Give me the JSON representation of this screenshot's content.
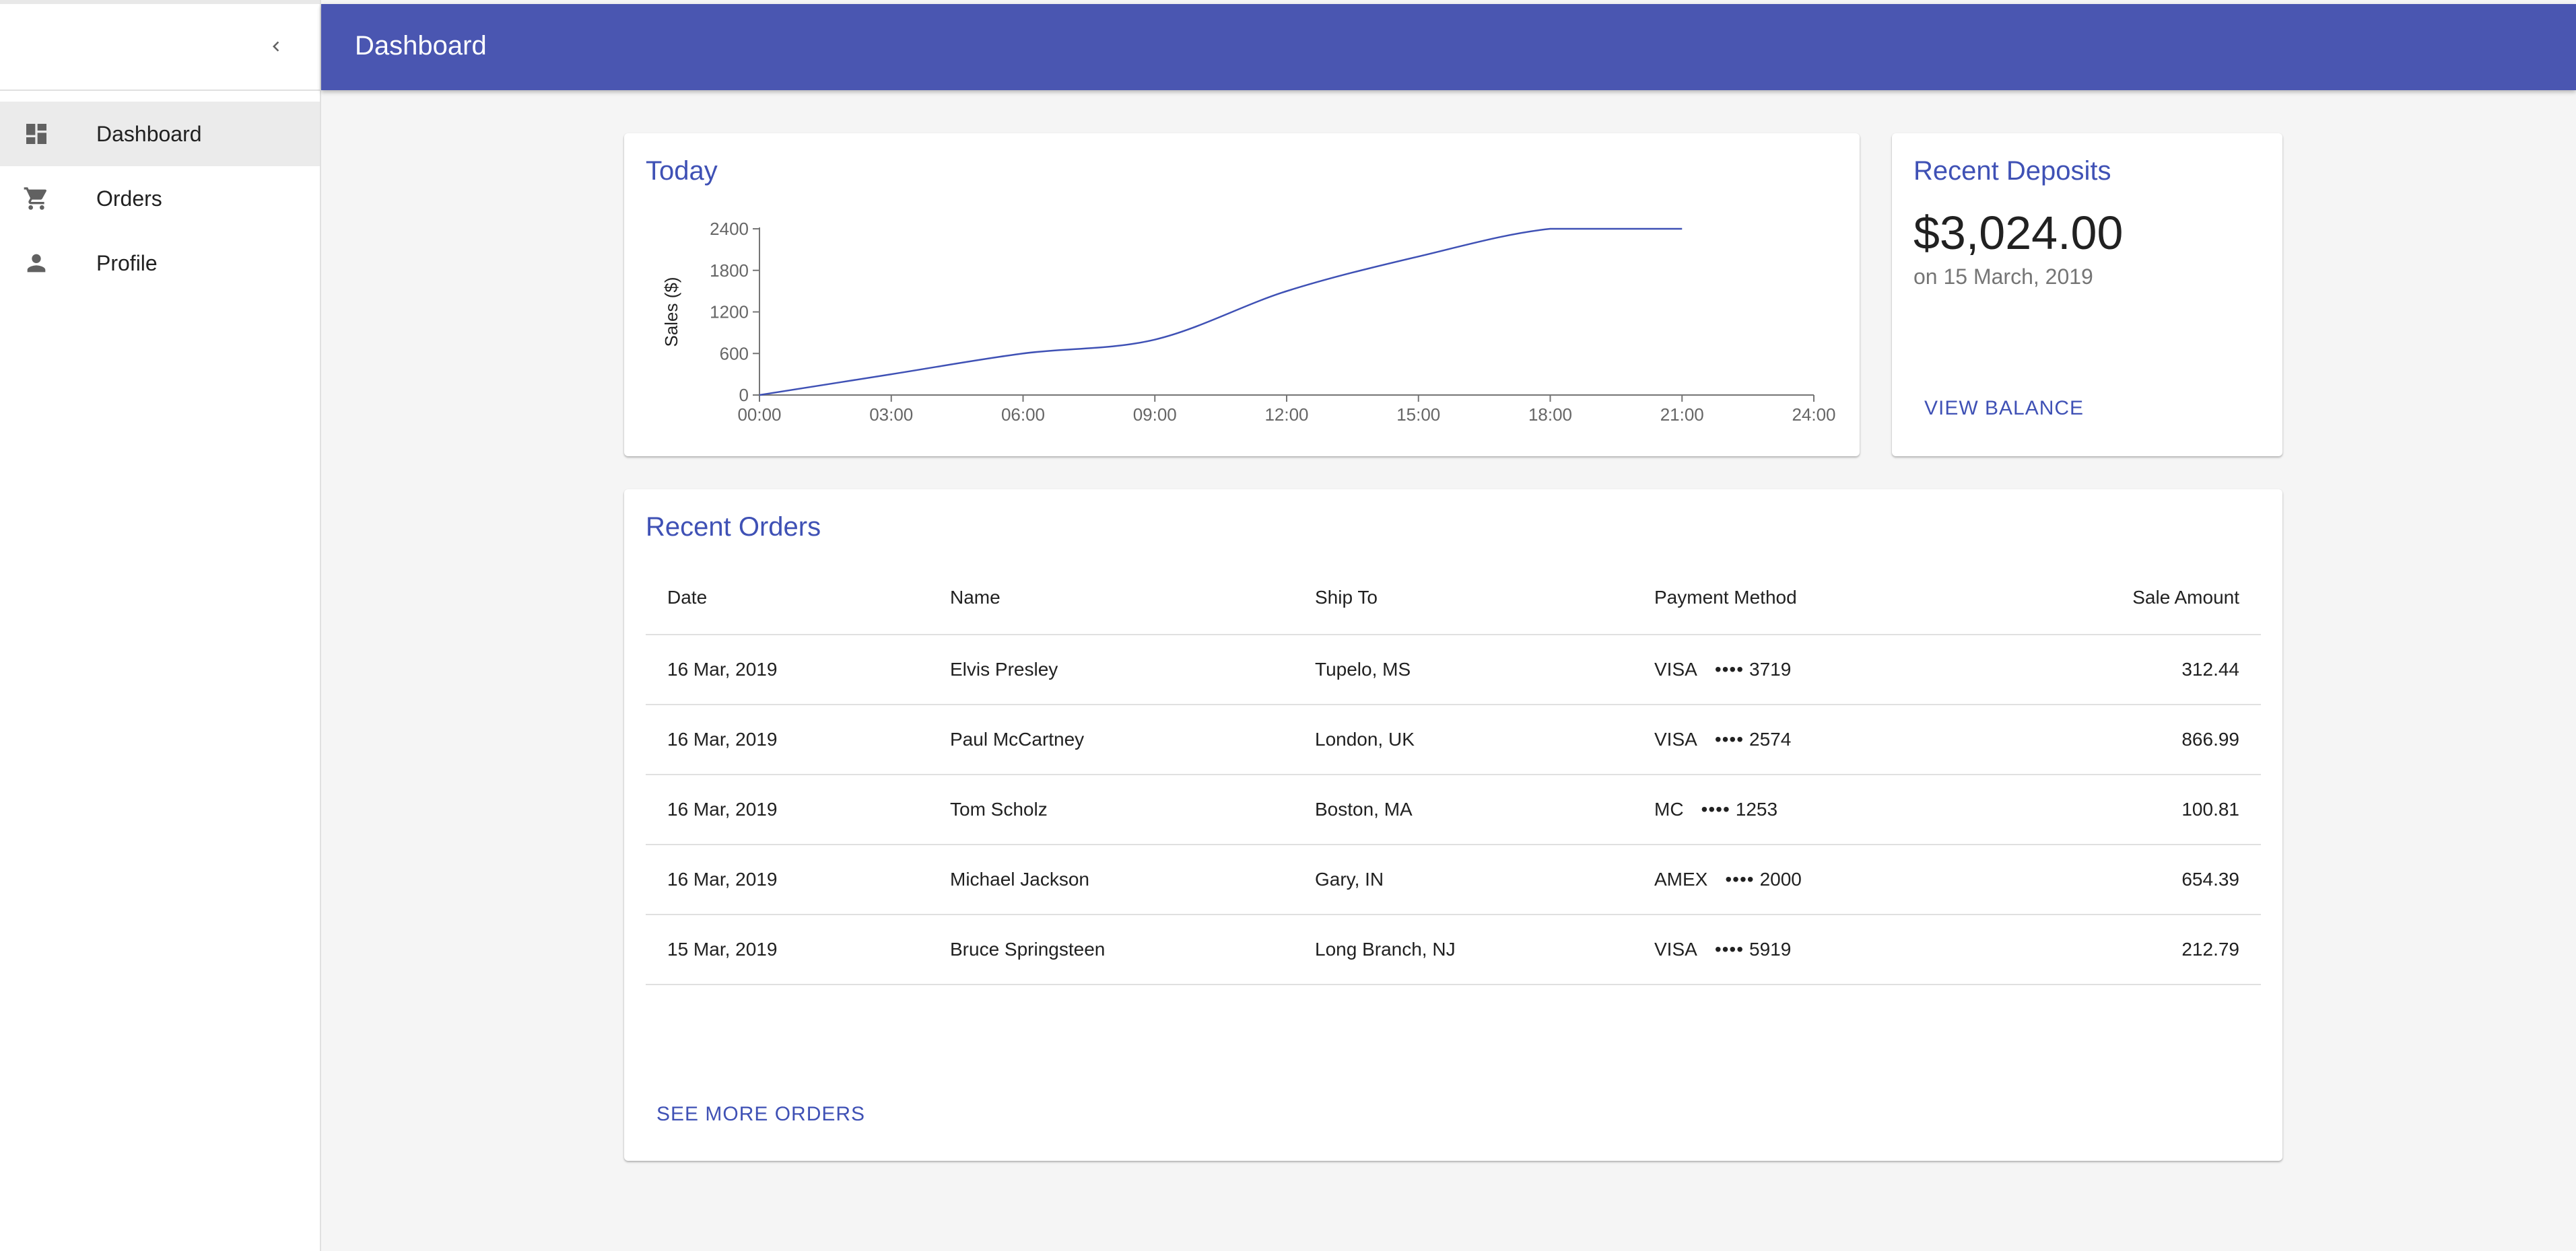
{
  "sidebar": {
    "collapse_icon": "chevron-left-icon",
    "items": [
      {
        "label": "Dashboard",
        "icon": "dashboard-icon",
        "selected": true
      },
      {
        "label": "Orders",
        "icon": "shopping-cart-icon",
        "selected": false
      },
      {
        "label": "Profile",
        "icon": "person-icon",
        "selected": false
      }
    ]
  },
  "appbar": {
    "title": "Dashboard",
    "color": "#4a56b1"
  },
  "today": {
    "title": "Today",
    "chart_data": {
      "type": "line",
      "ylabel": "Sales ($)",
      "xlabel": "",
      "x": [
        "00:00",
        "03:00",
        "06:00",
        "09:00",
        "12:00",
        "15:00",
        "18:00",
        "21:00",
        "24:00"
      ],
      "series": [
        {
          "values": [
            0,
            300,
            600,
            800,
            1500,
            2000,
            2400,
            2400,
            null
          ]
        }
      ],
      "x_ticks": [
        "00:00",
        "03:00",
        "06:00",
        "09:00",
        "12:00",
        "15:00",
        "18:00",
        "21:00",
        "24:00"
      ],
      "y_ticks": [
        "0",
        "600",
        "1200",
        "1800",
        "2400"
      ],
      "ylim": [
        0,
        2400
      ],
      "line_color": "#3f51b5"
    }
  },
  "deposits": {
    "title": "Recent Deposits",
    "amount": "$3,024.00",
    "date": "on 15 March, 2019",
    "link": "VIEW BALANCE"
  },
  "orders": {
    "title": "Recent Orders",
    "columns": [
      "Date",
      "Name",
      "Ship To",
      "Payment Method",
      "Sale Amount"
    ],
    "rows": [
      {
        "date": "16 Mar, 2019",
        "name": "Elvis Presley",
        "ship_to": "Tupelo, MS",
        "card": "VISA",
        "dots": "••••",
        "last4": "3719",
        "amount": "312.44"
      },
      {
        "date": "16 Mar, 2019",
        "name": "Paul McCartney",
        "ship_to": "London, UK",
        "card": "VISA",
        "dots": "••••",
        "last4": "2574",
        "amount": "866.99"
      },
      {
        "date": "16 Mar, 2019",
        "name": "Tom Scholz",
        "ship_to": "Boston, MA",
        "card": "MC",
        "dots": "••••",
        "last4": "1253",
        "amount": "100.81"
      },
      {
        "date": "16 Mar, 2019",
        "name": "Michael Jackson",
        "ship_to": "Gary, IN",
        "card": "AMEX",
        "dots": "••••",
        "last4": "2000",
        "amount": "654.39"
      },
      {
        "date": "15 Mar, 2019",
        "name": "Bruce Springsteen",
        "ship_to": "Long Branch, NJ",
        "card": "VISA",
        "dots": "••••",
        "last4": "5919",
        "amount": "212.79"
      }
    ],
    "link": "SEE MORE ORDERS"
  }
}
